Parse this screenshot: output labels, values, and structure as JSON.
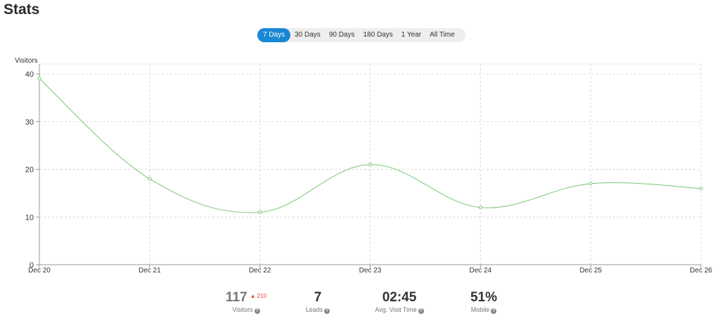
{
  "page": {
    "title": "Stats"
  },
  "ranges": [
    {
      "label": "7 Days",
      "active": true
    },
    {
      "label": "30 Days",
      "active": false
    },
    {
      "label": "90 Days",
      "active": false
    },
    {
      "label": "180 Days",
      "active": false
    },
    {
      "label": "1 Year",
      "active": false
    },
    {
      "label": "All Time",
      "active": false
    }
  ],
  "chart_data": {
    "type": "line",
    "ylabel": "Visitors",
    "x": [
      "Dec 20",
      "Dec 21",
      "Dec 22",
      "Dec 23",
      "Dec 24",
      "Dec 25",
      "Dec 26"
    ],
    "series": [
      {
        "values": [
          39,
          18,
          11,
          21,
          12,
          17,
          16
        ],
        "color": "#7cc576"
      }
    ],
    "ylim": [
      0,
      40
    ],
    "yticks": [
      0,
      10,
      20,
      30,
      40
    ],
    "grid": true
  },
  "stats": {
    "visitors": {
      "value": "117",
      "change": "210",
      "label": "Visitors"
    },
    "leads": {
      "value": "7",
      "label": "Leads"
    },
    "avg_visit": {
      "value": "02:45",
      "label": "Avg. Visit Time"
    },
    "mobile": {
      "value": "51%",
      "label": "Mobile"
    }
  },
  "help_icon_glyph": "?"
}
